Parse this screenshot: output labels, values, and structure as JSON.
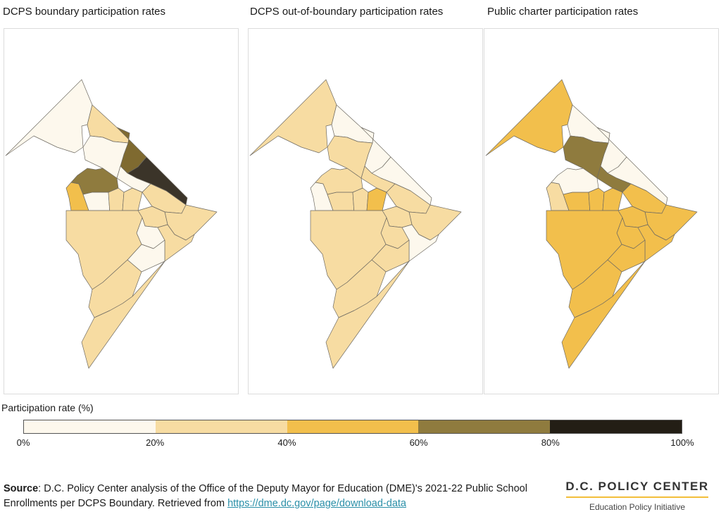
{
  "panels": [
    {
      "title": "DCPS boundary participation rates",
      "fills": [
        "#fdf8ed",
        "#f7dca2",
        "#7f6a30",
        "#3b3429",
        "#fdf8ed",
        "#fdf8ed",
        "#f7dca2",
        "#f7dca2",
        "#f2bf4c",
        "#fdf8ed",
        "#f7dca2",
        "#f7dca2",
        "#8f7b3e",
        "#f7dca2",
        "#fdf8ed",
        "#f7dca2",
        "#fdf8ed",
        "#f7dca2",
        "#f7dca2",
        "#f7dca2"
      ]
    },
    {
      "title": "DCPS out-of-boundary participation rates",
      "fills": [
        "#f7dca2",
        "#fdf8ed",
        "#fdf8ed",
        "#fdf8ed",
        "#f7dca2",
        "#f7dca2",
        "#f7dca2",
        "#f7dca2",
        "#fdf8ed",
        "#f7dca2",
        "#f7dca2",
        "#f2bf4c",
        "#f7dca2",
        "#f7dca2",
        "#f7dca2",
        "#fdf8ed",
        "#f7dca2",
        "#f7dca2",
        "#f7dca2",
        "#f7dca2"
      ]
    },
    {
      "title": "Public charter participation rates",
      "fills": [
        "#f2bf4c",
        "#fdf8ed",
        "#fdf8ed",
        "#fdf8ed",
        "#8f7b3e",
        "#8f7b3e",
        "#f2bf4c",
        "#f2bf4c",
        "#f7dca2",
        "#f2bf4c",
        "#f2bf4c",
        "#f2bf4c",
        "#fdf8ed",
        "#f2bf4c",
        "#f2bf4c",
        "#f2bf4c",
        "#f2bf4c",
        "#f2bf4c",
        "#f2bf4c",
        "#f2bf4c"
      ]
    }
  ],
  "legend": {
    "title": "Participation rate (%)",
    "colors": [
      "#fdf8ed",
      "#f7dca2",
      "#f2bf4c",
      "#8f7b3e",
      "#231e15"
    ],
    "ticks": [
      "0%",
      "20%",
      "40%",
      "60%",
      "80%",
      "100%"
    ]
  },
  "source": {
    "label": "Source",
    "text": ": D.C. Policy Center analysis of the Office of the Deputy Mayor for Education (DME)'s 2021-22 Public School Enrollments per DCPS Boundary. Retrieved from ",
    "link": "https://dme.dc.gov/page/download-data"
  },
  "logo": {
    "name": "D.C. POLICY CENTER",
    "subtitle": "Education Policy Initiative"
  }
}
